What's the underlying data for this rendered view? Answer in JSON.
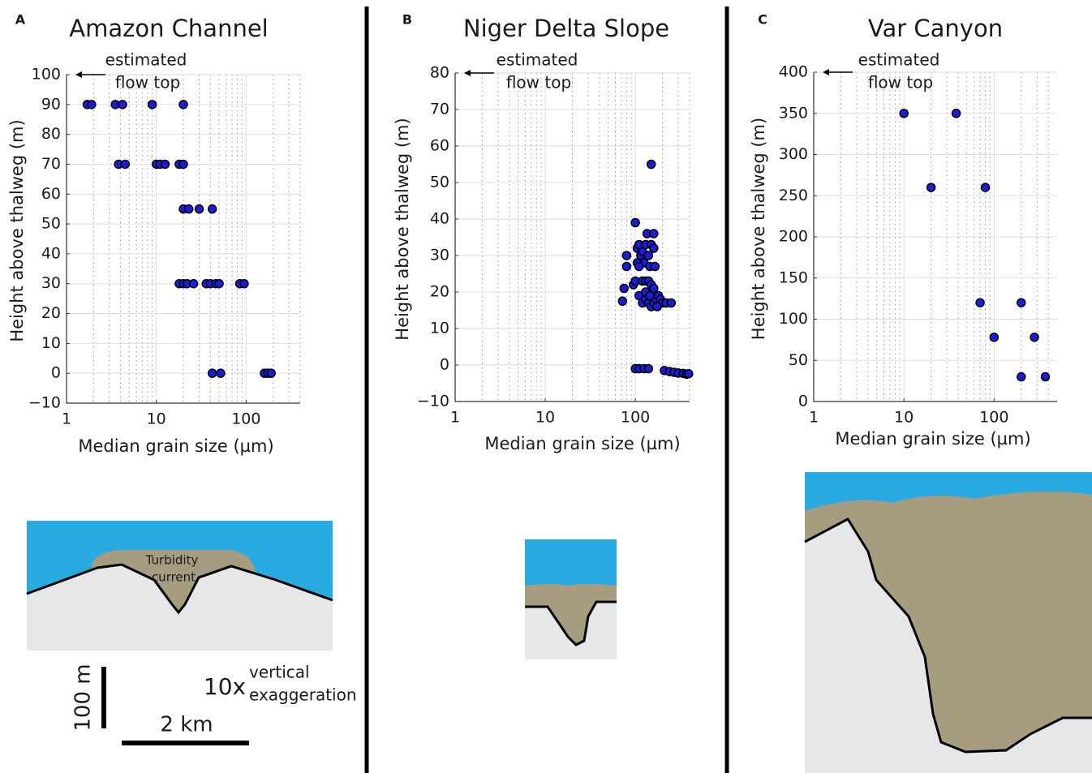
{
  "chart_data": [
    {
      "type": "scatter",
      "panel": "A",
      "title": "Amazon Channel",
      "x_label": "Median grain size (µm)",
      "y_label": "Height above thalweg (m)",
      "annotation": [
        "estimated",
        "flow top"
      ],
      "annotation_y": 100,
      "x_scale": "log",
      "xlim": [
        1,
        400
      ],
      "xticks": [
        1,
        10,
        100
      ],
      "x_minor_grid": [
        2,
        3,
        4,
        5,
        6,
        7,
        8,
        9,
        20,
        30,
        40,
        50,
        60,
        70,
        80,
        90,
        200,
        300,
        400
      ],
      "ylim": [
        -10,
        100
      ],
      "yticks": [
        {
          "value": -10,
          "label": "−10"
        },
        0,
        10,
        20,
        30,
        40,
        50,
        60,
        70,
        80,
        90,
        100
      ],
      "grid": true,
      "color": "#1c1cd8",
      "x": [
        1.7,
        1.9,
        3.5,
        4.2,
        9,
        20,
        3.8,
        4.5,
        10,
        11,
        12.5,
        18,
        20,
        20,
        23,
        30,
        42,
        18,
        20,
        22,
        26,
        36,
        40,
        46,
        50,
        85,
        95,
        42,
        52,
        160,
        175,
        190
      ],
      "values": [
        90,
        90,
        90,
        90,
        90,
        90,
        70,
        70,
        70,
        70,
        70,
        70,
        70,
        55,
        55,
        55,
        55,
        30,
        30,
        30,
        30,
        30,
        30,
        30,
        30,
        30,
        30,
        0,
        0,
        0,
        0,
        0
      ]
    },
    {
      "type": "scatter",
      "panel": "B",
      "title": "Niger Delta Slope",
      "x_label": "Median grain size (µm)",
      "y_label": "Height above thalweg (m)",
      "annotation": [
        "estimated",
        "flow top"
      ],
      "annotation_y": 80,
      "x_scale": "log",
      "xlim": [
        1,
        400
      ],
      "xticks": [
        1,
        10,
        100
      ],
      "x_minor_grid": [
        2,
        3,
        4,
        5,
        6,
        7,
        8,
        9,
        20,
        30,
        40,
        50,
        60,
        70,
        80,
        90,
        200,
        300,
        400
      ],
      "ylim": [
        -10,
        80
      ],
      "yticks": [
        {
          "value": -10,
          "label": "−10"
        },
        0,
        10,
        20,
        30,
        40,
        50,
        60,
        70,
        80
      ],
      "grid": true,
      "color": "#1c1cd8",
      "x": [
        150,
        100,
        75,
        72,
        80,
        80,
        95,
        100,
        105,
        110,
        115,
        120,
        125,
        130,
        135,
        140,
        145,
        150,
        160,
        160,
        165,
        105,
        110,
        120,
        130,
        140,
        150,
        160,
        110,
        120,
        130,
        140,
        150,
        160,
        170,
        180,
        190,
        200,
        220,
        250,
        130,
        145,
        175,
        100,
        110,
        125,
        140,
        210,
        240,
        270,
        300,
        340,
        370,
        390
      ],
      "values": [
        55,
        39,
        21,
        17.5,
        27,
        30,
        22,
        23,
        32,
        33,
        30,
        31,
        28,
        33,
        36,
        30,
        27,
        33,
        36,
        32,
        27,
        28,
        27,
        23,
        23,
        23,
        22,
        21,
        19,
        17,
        18,
        17,
        16,
        17,
        18,
        19,
        18,
        17,
        17,
        17,
        20,
        19,
        16,
        -1,
        -1,
        -1,
        -1,
        -1.5,
        -1.8,
        -2,
        -2.2,
        -2.3,
        -2.5,
        -2.4
      ]
    },
    {
      "type": "scatter",
      "panel": "C",
      "title": "Var Canyon",
      "x_label": "Median grain size (µm)",
      "y_label": "Height above thalweg (m)",
      "annotation": [
        "estimated",
        "flow top"
      ],
      "annotation_y": 400,
      "x_scale": "log",
      "xlim": [
        1,
        500
      ],
      "xticks": [
        1,
        10,
        100
      ],
      "x_minor_grid": [
        2,
        3,
        4,
        5,
        6,
        7,
        8,
        9,
        20,
        30,
        40,
        50,
        60,
        70,
        80,
        90,
        200,
        300,
        400
      ],
      "ylim": [
        0,
        400
      ],
      "yticks": [
        0,
        50,
        100,
        150,
        200,
        250,
        300,
        350,
        400
      ],
      "grid": true,
      "color": "#1c1cd8",
      "x": [
        10,
        38,
        20,
        80,
        70,
        200,
        100,
        280,
        200,
        370
      ],
      "values": [
        350,
        350,
        260,
        260,
        120,
        120,
        78,
        78,
        30,
        30
      ]
    }
  ],
  "diagram": {
    "label": [
      "Turbidity",
      "current"
    ],
    "scale_vertical": "100 m",
    "exaggeration": "10x",
    "exaggeration_label": [
      "vertical",
      "exaggeration"
    ],
    "scale_horizontal": "2 km"
  }
}
